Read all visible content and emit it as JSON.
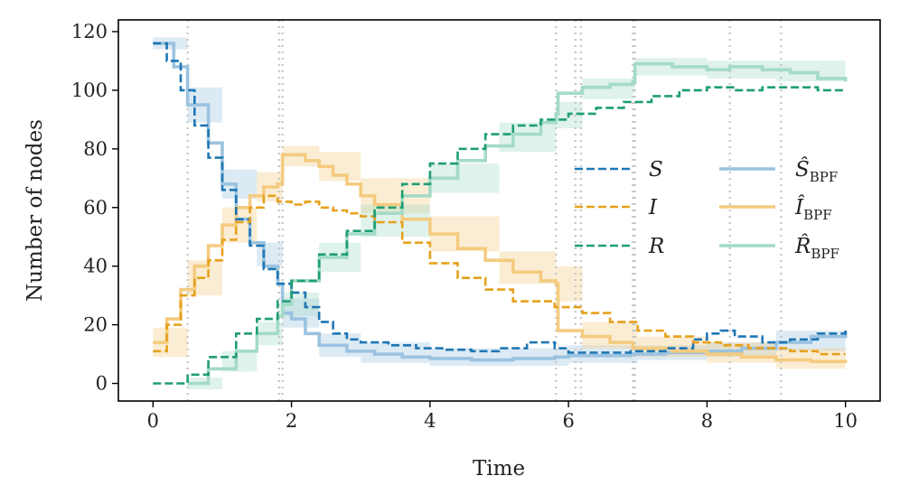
{
  "chart_data": {
    "type": "line",
    "xlabel": "Time",
    "ylabel": "Number of nodes",
    "xlim": [
      -0.5,
      10.5
    ],
    "ylim": [
      -6,
      124
    ],
    "xticks": [
      0,
      2,
      4,
      6,
      8,
      10
    ],
    "yticks": [
      0,
      20,
      40,
      60,
      80,
      100,
      120
    ],
    "vlines": [
      0.5,
      1.82,
      1.87,
      5.82,
      6.1,
      6.18,
      6.93,
      6.96,
      8.33,
      9.07
    ],
    "legend_position": "center-right",
    "series": [
      {
        "name": "S",
        "color": "#1f77b4",
        "style": "dashed",
        "points": [
          [
            0,
            116
          ],
          [
            0.2,
            110
          ],
          [
            0.4,
            100
          ],
          [
            0.6,
            88
          ],
          [
            0.8,
            77
          ],
          [
            1.0,
            66
          ],
          [
            1.2,
            56
          ],
          [
            1.4,
            47
          ],
          [
            1.6,
            39
          ],
          [
            1.8,
            34
          ],
          [
            2.0,
            31
          ],
          [
            2.2,
            26
          ],
          [
            2.4,
            21
          ],
          [
            2.6,
            17
          ],
          [
            2.8,
            15
          ],
          [
            3.0,
            14
          ],
          [
            3.4,
            13
          ],
          [
            3.8,
            12
          ],
          [
            4.2,
            11.5
          ],
          [
            4.6,
            11
          ],
          [
            5.0,
            12
          ],
          [
            5.4,
            14
          ],
          [
            5.8,
            12
          ],
          [
            6.0,
            10.5
          ],
          [
            6.4,
            10.5
          ],
          [
            6.9,
            11
          ],
          [
            7.4,
            12
          ],
          [
            7.8,
            15
          ],
          [
            8.0,
            17
          ],
          [
            8.2,
            18
          ],
          [
            8.4,
            16
          ],
          [
            8.8,
            14
          ],
          [
            9.2,
            15
          ],
          [
            9.6,
            17
          ],
          [
            10.0,
            18
          ]
        ]
      },
      {
        "name": "I",
        "color": "#e5a11c",
        "style": "dashed",
        "points": [
          [
            0,
            11
          ],
          [
            0.2,
            20
          ],
          [
            0.4,
            30
          ],
          [
            0.6,
            36
          ],
          [
            0.8,
            42
          ],
          [
            1.0,
            49
          ],
          [
            1.2,
            55
          ],
          [
            1.4,
            60
          ],
          [
            1.6,
            64
          ],
          [
            1.8,
            62
          ],
          [
            2.0,
            61
          ],
          [
            2.2,
            62
          ],
          [
            2.4,
            60
          ],
          [
            2.6,
            59
          ],
          [
            2.8,
            58
          ],
          [
            3.0,
            57
          ],
          [
            3.2,
            55
          ],
          [
            3.6,
            48
          ],
          [
            4.0,
            41
          ],
          [
            4.4,
            36
          ],
          [
            4.8,
            32
          ],
          [
            5.2,
            28
          ],
          [
            5.8,
            26
          ],
          [
            6.2,
            24
          ],
          [
            6.6,
            21
          ],
          [
            7.0,
            18
          ],
          [
            7.4,
            16
          ],
          [
            7.8,
            14
          ],
          [
            8.2,
            13
          ],
          [
            8.6,
            12
          ],
          [
            9.2,
            11
          ],
          [
            9.6,
            10
          ],
          [
            10.0,
            10
          ]
        ]
      },
      {
        "name": "R",
        "color": "#1f9e74",
        "style": "dashed",
        "points": [
          [
            0,
            0
          ],
          [
            0.5,
            3
          ],
          [
            0.8,
            9
          ],
          [
            1.2,
            17
          ],
          [
            1.5,
            22
          ],
          [
            1.8,
            28
          ],
          [
            2.0,
            35
          ],
          [
            2.4,
            44
          ],
          [
            2.8,
            52
          ],
          [
            3.2,
            60
          ],
          [
            3.6,
            68
          ],
          [
            4.0,
            75
          ],
          [
            4.4,
            80
          ],
          [
            4.8,
            85
          ],
          [
            5.2,
            88
          ],
          [
            5.6,
            90
          ],
          [
            6.0,
            92
          ],
          [
            6.4,
            94
          ],
          [
            6.8,
            96
          ],
          [
            7.2,
            98
          ],
          [
            7.6,
            100
          ],
          [
            8.0,
            101
          ],
          [
            8.4,
            100
          ],
          [
            8.8,
            101
          ],
          [
            9.2,
            101
          ],
          [
            9.6,
            100
          ],
          [
            10.0,
            100
          ]
        ]
      },
      {
        "name": "Ŝ_BPF",
        "color": "#9bc3e0",
        "style": "solid",
        "points": [
          [
            0,
            116
          ],
          [
            0.3,
            108
          ],
          [
            0.5,
            95
          ],
          [
            0.8,
            82
          ],
          [
            1.0,
            68
          ],
          [
            1.2,
            56
          ],
          [
            1.4,
            48
          ],
          [
            1.6,
            40
          ],
          [
            1.8,
            34
          ],
          [
            1.87,
            24
          ],
          [
            2.0,
            22
          ],
          [
            2.2,
            17
          ],
          [
            2.4,
            13
          ],
          [
            2.8,
            11
          ],
          [
            3.2,
            10
          ],
          [
            3.6,
            9
          ],
          [
            4.0,
            8.5
          ],
          [
            4.6,
            8
          ],
          [
            5.2,
            8.5
          ],
          [
            5.8,
            9
          ],
          [
            6.0,
            9.5
          ],
          [
            6.9,
            10
          ],
          [
            7.4,
            10.5
          ],
          [
            8.0,
            11
          ],
          [
            8.5,
            12
          ],
          [
            9.0,
            14
          ],
          [
            9.5,
            16
          ],
          [
            10.0,
            18
          ]
        ],
        "band": [
          [
            0,
            118,
            114
          ],
          [
            0.5,
            101,
            89
          ],
          [
            1.0,
            73,
            63
          ],
          [
            1.5,
            48,
            40
          ],
          [
            1.87,
            29,
            19
          ],
          [
            2.4,
            17,
            9
          ],
          [
            3.0,
            14,
            7
          ],
          [
            4.0,
            12,
            6
          ],
          [
            5.0,
            12,
            6
          ],
          [
            6.0,
            13,
            7
          ],
          [
            7.0,
            13,
            8
          ],
          [
            8.0,
            14,
            9
          ],
          [
            9.0,
            18,
            11
          ],
          [
            10.0,
            23,
            14
          ]
        ]
      },
      {
        "name": "Î_BPF",
        "color": "#f4cb80",
        "style": "solid",
        "points": [
          [
            0,
            14
          ],
          [
            0.2,
            22
          ],
          [
            0.4,
            32
          ],
          [
            0.6,
            40
          ],
          [
            0.8,
            47
          ],
          [
            1.0,
            54
          ],
          [
            1.2,
            60
          ],
          [
            1.4,
            64
          ],
          [
            1.6,
            67
          ],
          [
            1.8,
            68
          ],
          [
            1.87,
            78
          ],
          [
            2.2,
            76
          ],
          [
            2.4,
            74
          ],
          [
            2.6,
            71
          ],
          [
            2.8,
            68
          ],
          [
            3.0,
            64
          ],
          [
            3.2,
            61
          ],
          [
            3.6,
            56
          ],
          [
            4.0,
            51
          ],
          [
            4.4,
            46
          ],
          [
            4.8,
            42
          ],
          [
            5.2,
            38
          ],
          [
            5.6,
            35
          ],
          [
            5.82,
            34
          ],
          [
            5.85,
            18
          ],
          [
            6.2,
            16
          ],
          [
            6.6,
            14
          ],
          [
            6.93,
            12
          ],
          [
            7.5,
            11
          ],
          [
            8.0,
            10
          ],
          [
            8.5,
            9
          ],
          [
            9.0,
            8
          ],
          [
            9.5,
            7.5
          ],
          [
            10.0,
            7
          ]
        ],
        "band": [
          [
            0,
            19,
            9
          ],
          [
            0.5,
            42,
            30
          ],
          [
            1.0,
            60,
            48
          ],
          [
            1.5,
            72,
            62
          ],
          [
            1.87,
            81,
            74
          ],
          [
            2.4,
            79,
            69
          ],
          [
            3.0,
            70,
            58
          ],
          [
            4.0,
            57,
            45
          ],
          [
            5.0,
            45,
            34
          ],
          [
            5.82,
            40,
            28
          ],
          [
            6.2,
            21,
            12
          ],
          [
            7.0,
            16,
            9
          ],
          [
            8.0,
            14,
            7
          ],
          [
            9.0,
            12,
            5
          ],
          [
            10.0,
            11,
            4
          ]
        ]
      },
      {
        "name": "R̂_BPF",
        "color": "#a4dbc6",
        "style": "solid",
        "points": [
          [
            0.5,
            0
          ],
          [
            0.8,
            5
          ],
          [
            1.2,
            11
          ],
          [
            1.5,
            17
          ],
          [
            1.8,
            23
          ],
          [
            1.87,
            27
          ],
          [
            2.0,
            35
          ],
          [
            2.4,
            43
          ],
          [
            2.8,
            51
          ],
          [
            3.2,
            58
          ],
          [
            3.6,
            64
          ],
          [
            4.0,
            70
          ],
          [
            4.4,
            76
          ],
          [
            4.8,
            81
          ],
          [
            5.2,
            85
          ],
          [
            5.6,
            89
          ],
          [
            5.82,
            92
          ],
          [
            5.85,
            99
          ],
          [
            6.2,
            101
          ],
          [
            6.6,
            102
          ],
          [
            6.93,
            103
          ],
          [
            6.96,
            109
          ],
          [
            7.5,
            108
          ],
          [
            8.0,
            107
          ],
          [
            8.33,
            108
          ],
          [
            8.8,
            107
          ],
          [
            9.2,
            106
          ],
          [
            9.6,
            104
          ],
          [
            10.0,
            103
          ]
        ],
        "band": [
          [
            0.5,
            2,
            -2
          ],
          [
            1.0,
            11,
            4
          ],
          [
            1.5,
            21,
            13
          ],
          [
            1.87,
            31,
            23
          ],
          [
            2.4,
            48,
            38
          ],
          [
            3.0,
            61,
            50
          ],
          [
            4.0,
            75,
            65
          ],
          [
            5.0,
            89,
            79
          ],
          [
            5.82,
            96,
            87
          ],
          [
            6.2,
            104,
            97
          ],
          [
            6.93,
            106,
            99
          ],
          [
            6.96,
            111,
            105
          ],
          [
            8.0,
            110,
            104
          ],
          [
            9.0,
            110,
            103
          ],
          [
            10.0,
            109,
            98
          ]
        ]
      }
    ],
    "legend": [
      {
        "label": "S",
        "series": 0
      },
      {
        "label": "I",
        "series": 1
      },
      {
        "label": "R",
        "series": 2
      },
      {
        "label": "Ŝ",
        "sub": "BPF",
        "series": 3
      },
      {
        "label": "Î",
        "sub": "BPF",
        "series": 4
      },
      {
        "label": "R̂",
        "sub": "BPF",
        "series": 5
      }
    ]
  }
}
